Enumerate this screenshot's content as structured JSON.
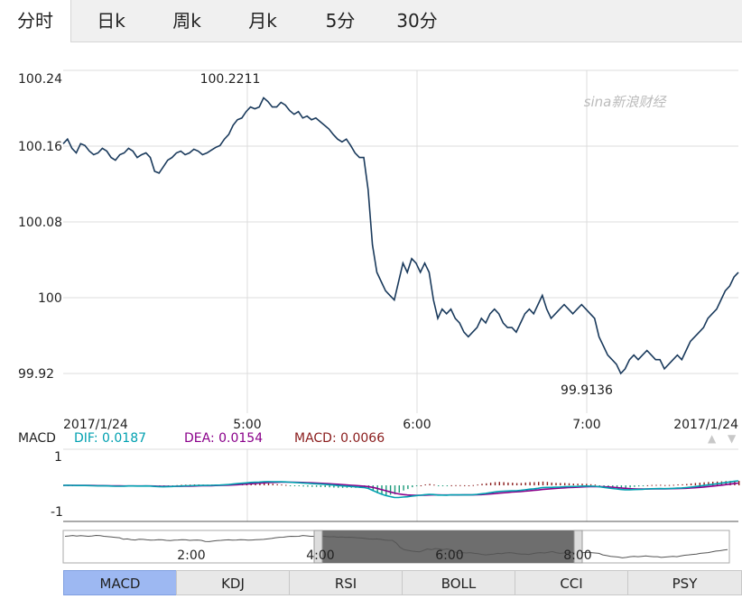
{
  "timeframe_tabs": [
    "分时",
    "日k",
    "周k",
    "月k",
    "5分",
    "30分"
  ],
  "active_tab": "分时",
  "watermark": "sina新浪财经",
  "chart_data": {
    "type": "line",
    "y_ticks": [
      "100.24",
      "100.16",
      "100.08",
      "100",
      "99.92"
    ],
    "ylim": [
      99.88,
      100.25
    ],
    "x_ticks": [
      "2017/1/24",
      "5:00",
      "6:00",
      "7:00",
      "2017/1/24"
    ],
    "max_label": "100.2211",
    "min_label": "99.9136",
    "line_color": "#1a3a5c",
    "series": [
      {
        "values": [
          100.17,
          100.175,
          100.165,
          100.16,
          100.17,
          100.168,
          100.162,
          100.158,
          100.16,
          100.165,
          100.162,
          100.155,
          100.152,
          100.158,
          100.16,
          100.165,
          100.162,
          100.155,
          100.158,
          100.16,
          100.155,
          100.14,
          100.138,
          100.145,
          100.152,
          100.155,
          100.16,
          100.162,
          100.158,
          100.16,
          100.164,
          100.162,
          100.158,
          100.16,
          100.163,
          100.166,
          100.168,
          100.175,
          100.18,
          100.19,
          100.196,
          100.198,
          100.205,
          100.21,
          100.208,
          100.21,
          100.22,
          100.216,
          100.21,
          100.21,
          100.215,
          100.212,
          100.206,
          100.202,
          100.205,
          100.198,
          100.2,
          100.196,
          100.198,
          100.194,
          100.19,
          100.186,
          100.18,
          100.175,
          100.172,
          100.175,
          100.168,
          100.16,
          100.155,
          100.155,
          100.12,
          100.06,
          100.03,
          100.02,
          100.01,
          100.005,
          100.0,
          100.02,
          100.04,
          100.03,
          100.045,
          100.04,
          100.03,
          100.04,
          100.03,
          100.0,
          99.98,
          99.99,
          99.985,
          99.99,
          99.98,
          99.975,
          99.965,
          99.96,
          99.965,
          99.97,
          99.98,
          99.975,
          99.985,
          99.99,
          99.985,
          99.975,
          99.97,
          99.97,
          99.965,
          99.975,
          99.985,
          99.99,
          99.985,
          99.995,
          100.005,
          99.99,
          99.98,
          99.985,
          99.99,
          99.995,
          99.99,
          99.985,
          99.99,
          99.995,
          99.99,
          99.985,
          99.98,
          99.96,
          99.95,
          99.94,
          99.935,
          99.93,
          99.92,
          99.925,
          99.935,
          99.94,
          99.935,
          99.94,
          99.945,
          99.94,
          99.935,
          99.935,
          99.925,
          99.93,
          99.935,
          99.94,
          99.935,
          99.945,
          99.955,
          99.96,
          99.965,
          99.97,
          99.98,
          99.985,
          99.99,
          100.0,
          100.01,
          100.015,
          100.025,
          100.03
        ]
      }
    ]
  },
  "macd": {
    "label": "MACD",
    "dif": "DIF: 0.0187",
    "dea": "DEA: 0.0154",
    "macd_value": "MACD: 0.0066",
    "y_ticks": [
      "1",
      "-1"
    ],
    "dif_color": "#00a0b0",
    "dea_color": "#8a008a",
    "macd_color": "#8a1c1c",
    "up_arrow": "▲",
    "down_arrow": "▼"
  },
  "navigator": {
    "x_ticks": [
      "2:00",
      "4:00",
      "6:00",
      "8:00"
    ]
  },
  "indicator_tabs": [
    "MACD",
    "KDJ",
    "RSI",
    "BOLL",
    "CCI",
    "PSY"
  ],
  "active_indicator": "MACD"
}
